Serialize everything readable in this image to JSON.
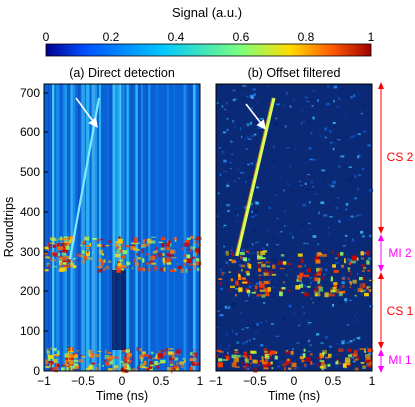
{
  "colorbar": {
    "label": "Signal (a.u.)",
    "ticks": [
      "0",
      "0.2",
      "0.4",
      "0.6",
      "0.8",
      "1"
    ],
    "stops": [
      "#00008f",
      "#0050ff",
      "#00c8ff",
      "#7dff7d",
      "#ffdd00",
      "#ff5a00",
      "#a00000"
    ]
  },
  "chart_data": [
    {
      "type": "heatmap",
      "title": "(a) Direct detection",
      "xlabel": "Time (ns)",
      "ylabel": "Roundtrips",
      "xlim": [
        -1,
        1
      ],
      "ylim": [
        0,
        720
      ],
      "x_ticks": [
        "−1",
        "−0.5",
        "0",
        "0.5",
        "1"
      ],
      "y_ticks": [
        "0",
        "100",
        "200",
        "300",
        "400",
        "500",
        "600",
        "700"
      ],
      "features": {
        "high_signal_bands": [
          [
            0,
            60
          ],
          [
            255,
            345
          ]
        ],
        "diagonal_track": {
          "x_start": -0.72,
          "y_start": 280,
          "x_end": -0.3,
          "y_end": 690
        }
      }
    },
    {
      "type": "heatmap",
      "title": "(b) Offset filtered",
      "xlabel": "Time (ns)",
      "xlim": [
        -1,
        1
      ],
      "ylim": [
        0,
        720
      ],
      "x_ticks": [
        "−1",
        "−0.5",
        "0",
        "0.5",
        "1"
      ],
      "features": {
        "high_signal_bands": [
          [
            0,
            60
          ],
          [
            230,
            290
          ]
        ],
        "diagonal_track": {
          "x_start": -0.78,
          "y_start": 280,
          "x_end": -0.33,
          "y_end": 690
        }
      }
    }
  ],
  "regions": [
    {
      "label": "CS 2",
      "y_start": 345,
      "y_end": 720,
      "color": "#ff0000"
    },
    {
      "label": "MI 2",
      "y_start": 255,
      "y_end": 345,
      "color": "#ff00ff"
    },
    {
      "label": "CS 1",
      "y_start": 60,
      "y_end": 255,
      "color": "#ff0000"
    },
    {
      "label": "MI 1",
      "y_start": 0,
      "y_end": 60,
      "color": "#ff00ff"
    }
  ]
}
